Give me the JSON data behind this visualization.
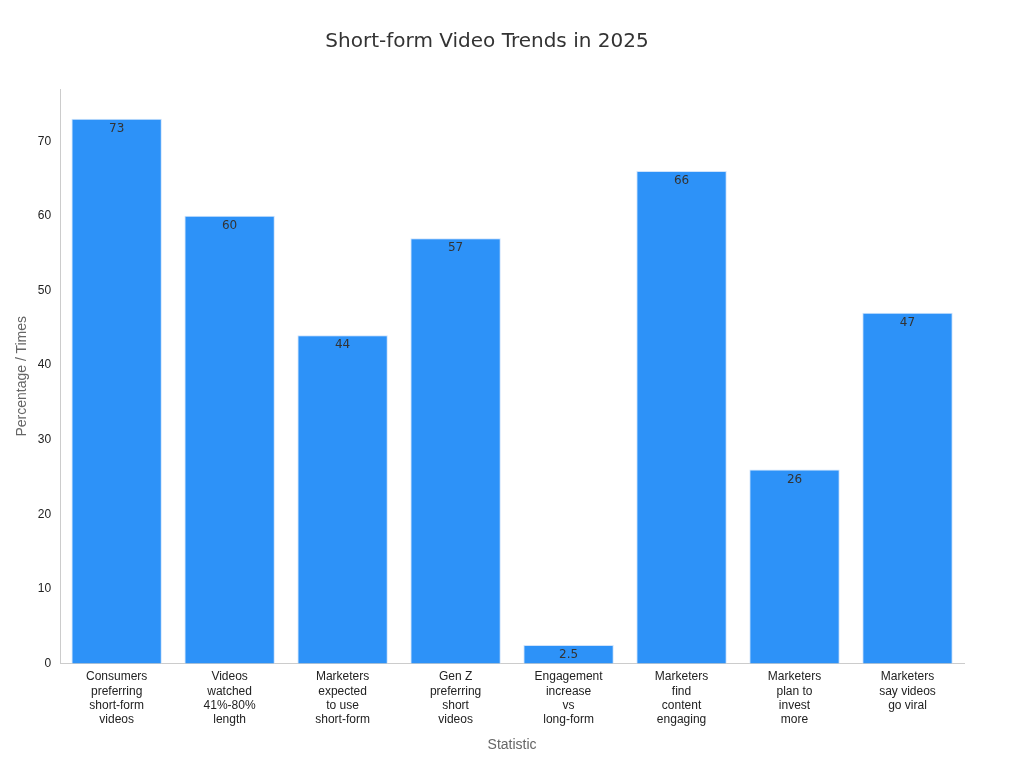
{
  "chart_data": {
    "type": "bar",
    "title": "Short-form Video Trends in 2025",
    "xlabel": "Statistic",
    "ylabel": "Percentage / Times",
    "categories": [
      "Consumers preferring short-form videos",
      "Videos watched 41%-80% length",
      "Marketers expected to use short-form",
      "Gen Z preferring short videos",
      "Engagement increase vs long-form",
      "Marketers find content engaging",
      "Marketers plan to invest more",
      "Marketers say videos go viral"
    ],
    "values": [
      73,
      60,
      44,
      57,
      2.5,
      66,
      26,
      47
    ],
    "color": "#2d92f8",
    "ylim": [
      0,
      77
    ],
    "yticks": [
      0,
      10,
      20,
      30,
      40,
      50,
      60,
      70
    ],
    "data_labels": true,
    "grid": false,
    "legend": false
  }
}
